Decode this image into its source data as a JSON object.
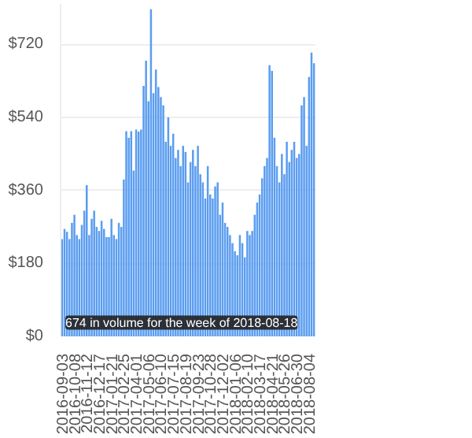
{
  "chart_data": {
    "type": "bar",
    "categories": [
      "2016-09-03",
      null,
      null,
      null,
      null,
      "2016-10-08",
      null,
      null,
      null,
      null,
      "2016-11-12",
      null,
      null,
      null,
      null,
      "2016-12-17",
      null,
      null,
      null,
      null,
      "2017-01-21",
      null,
      null,
      null,
      null,
      "2017-02-25",
      null,
      null,
      null,
      null,
      "2017-04-01",
      null,
      null,
      null,
      null,
      "2017-05-06",
      null,
      null,
      null,
      null,
      "2017-06-10",
      null,
      null,
      null,
      null,
      "2017-07-15",
      null,
      null,
      null,
      null,
      "2017-08-19",
      null,
      null,
      null,
      null,
      "2017-09-23",
      null,
      null,
      null,
      null,
      "2017-10-28",
      null,
      null,
      null,
      null,
      "2017-12-02",
      null,
      null,
      null,
      null,
      "2018-01-06",
      null,
      null,
      null,
      null,
      "2018-02-10",
      null,
      null,
      null,
      null,
      "2018-03-17",
      null,
      null,
      null,
      null,
      "2018-04-21",
      null,
      null,
      null,
      null,
      "2018-05-26",
      null,
      null,
      null,
      null,
      "2018-06-30",
      null,
      null,
      null,
      null,
      "2018-08-04",
      null,
      null
    ],
    "values": [
      240,
      265,
      258,
      240,
      280,
      300,
      250,
      240,
      275,
      310,
      373,
      250,
      290,
      310,
      270,
      260,
      285,
      265,
      245,
      245,
      290,
      250,
      240,
      280,
      270,
      387,
      506,
      490,
      506,
      409,
      510,
      505,
      510,
      618,
      680,
      580,
      807,
      600,
      658,
      615,
      590,
      570,
      480,
      540,
      470,
      500,
      440,
      460,
      420,
      470,
      455,
      380,
      430,
      460,
      420,
      470,
      400,
      380,
      340,
      420,
      350,
      340,
      370,
      380,
      300,
      330,
      280,
      270,
      250,
      230,
      210,
      200,
      250,
      230,
      195,
      260,
      250,
      260,
      300,
      330,
      350,
      390,
      420,
      440,
      669,
      655,
      490,
      420,
      380,
      450,
      400,
      480,
      430,
      460,
      480,
      440,
      450,
      570,
      590,
      470,
      640,
      700,
      674
    ],
    "color": "#5b9df0",
    "ylim": [
      0,
      820
    ],
    "yticks": [
      {
        "value": 0,
        "label": "$0"
      },
      {
        "value": 180,
        "label": "$180"
      },
      {
        "value": 360,
        "label": "$360"
      },
      {
        "value": 540,
        "label": "$540"
      },
      {
        "value": 720,
        "label": "$720"
      }
    ],
    "grid": "y",
    "annotations": [
      "674 in volume for the week of 2018-08-18"
    ]
  }
}
